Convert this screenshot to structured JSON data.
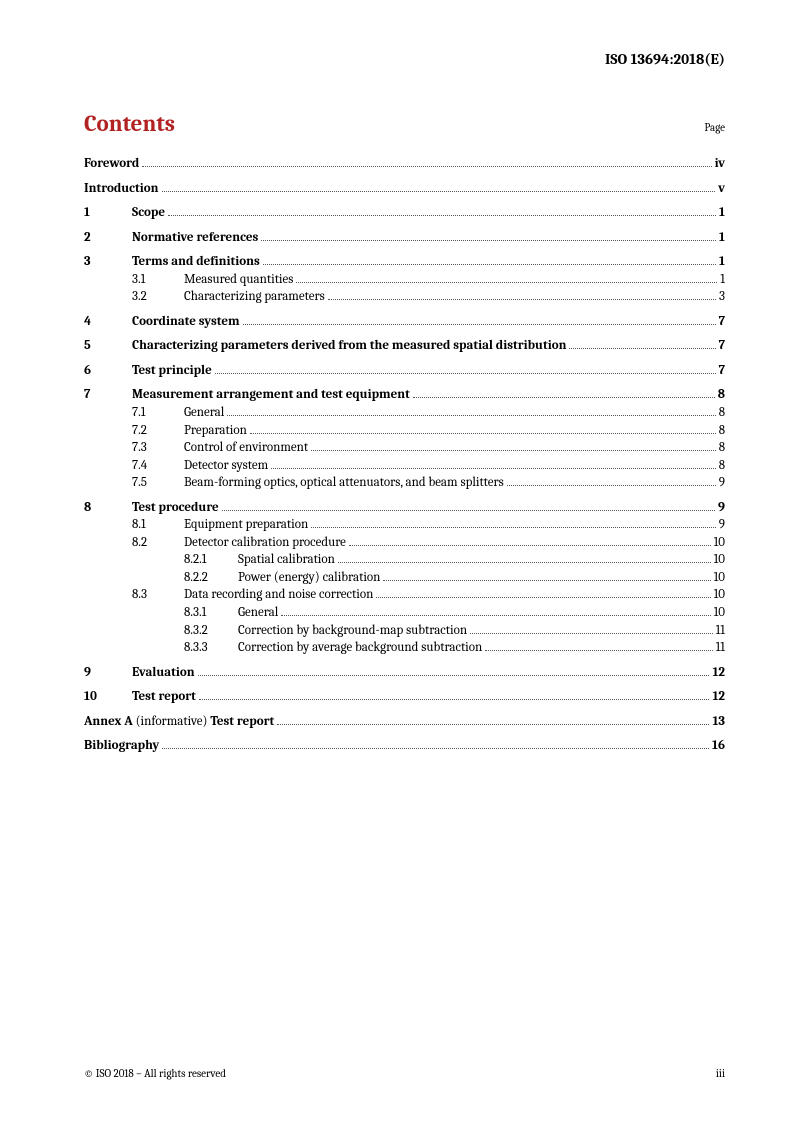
{
  "header": {
    "doc_id": "ISO 13694:2018(E)"
  },
  "title": {
    "text": "Contents",
    "page_label": "Page"
  },
  "toc": [
    {
      "level": 0,
      "num": "",
      "title": "Foreword",
      "page": "iv",
      "bold": true,
      "gap": false
    },
    {
      "level": 0,
      "num": "",
      "title": "Introduction",
      "page": "v",
      "bold": true,
      "gap": true
    },
    {
      "level": 1,
      "num": "1",
      "title": "Scope",
      "page": "1",
      "bold": true,
      "gap": true
    },
    {
      "level": 1,
      "num": "2",
      "title": "Normative references",
      "page": "1",
      "bold": true,
      "gap": true
    },
    {
      "level": 1,
      "num": "3",
      "title": "Terms and definitions",
      "page": "1",
      "bold": true,
      "gap": true
    },
    {
      "level": 2,
      "num": "3.1",
      "title": "Measured quantities",
      "page": "1",
      "bold": false,
      "gap": false
    },
    {
      "level": 2,
      "num": "3.2",
      "title": "Characterizing parameters",
      "page": "3",
      "bold": false,
      "gap": false
    },
    {
      "level": 1,
      "num": "4",
      "title": "Coordinate system",
      "page": "7",
      "bold": true,
      "gap": true
    },
    {
      "level": 1,
      "num": "5",
      "title": "Characterizing parameters derived from the measured spatial distribution",
      "page": "7",
      "bold": true,
      "gap": true
    },
    {
      "level": 1,
      "num": "6",
      "title": "Test principle",
      "page": "7",
      "bold": true,
      "gap": true
    },
    {
      "level": 1,
      "num": "7",
      "title": "Measurement arrangement and test equipment",
      "page": "8",
      "bold": true,
      "gap": true
    },
    {
      "level": 2,
      "num": "7.1",
      "title": "General",
      "page": "8",
      "bold": false,
      "gap": false
    },
    {
      "level": 2,
      "num": "7.2",
      "title": "Preparation",
      "page": "8",
      "bold": false,
      "gap": false
    },
    {
      "level": 2,
      "num": "7.3",
      "title": "Control of environment",
      "page": "8",
      "bold": false,
      "gap": false
    },
    {
      "level": 2,
      "num": "7.4",
      "title": "Detector system",
      "page": "8",
      "bold": false,
      "gap": false
    },
    {
      "level": 2,
      "num": "7.5",
      "title": "Beam-forming optics, optical attenuators, and beam splitters",
      "page": "9",
      "bold": false,
      "gap": false
    },
    {
      "level": 1,
      "num": "8",
      "title": "Test procedure",
      "page": "9",
      "bold": true,
      "gap": true
    },
    {
      "level": 2,
      "num": "8.1",
      "title": "Equipment preparation",
      "page": "9",
      "bold": false,
      "gap": false
    },
    {
      "level": 2,
      "num": "8.2",
      "title": "Detector calibration procedure",
      "page": "10",
      "bold": false,
      "gap": false
    },
    {
      "level": 3,
      "num": "8.2.1",
      "title": "Spatial calibration",
      "page": "10",
      "bold": false,
      "gap": false
    },
    {
      "level": 3,
      "num": "8.2.2",
      "title": "Power (energy) calibration",
      "page": "10",
      "bold": false,
      "gap": false
    },
    {
      "level": 2,
      "num": "8.3",
      "title": "Data recording and noise correction",
      "page": "10",
      "bold": false,
      "gap": false
    },
    {
      "level": 3,
      "num": "8.3.1",
      "title": "General",
      "page": "10",
      "bold": false,
      "gap": false
    },
    {
      "level": 3,
      "num": "8.3.2",
      "title": "Correction by background-map subtraction",
      "page": "11",
      "bold": false,
      "gap": false
    },
    {
      "level": 3,
      "num": "8.3.3",
      "title": "Correction by average background subtraction",
      "page": "11",
      "bold": false,
      "gap": false
    },
    {
      "level": 1,
      "num": "9",
      "title": "Evaluation",
      "page": "12",
      "bold": true,
      "gap": true
    },
    {
      "level": 1,
      "num": "10",
      "title": "Test report",
      "page": "12",
      "bold": true,
      "gap": true
    }
  ],
  "annex": {
    "prefix": "Annex A",
    "qualifier": " (informative) ",
    "title": "Test report",
    "page": "13"
  },
  "bibliography": {
    "title": "Bibliography",
    "page": "16"
  },
  "footer": {
    "copyright": "© ISO 2018 – All rights reserved",
    "page_num": "iii"
  }
}
